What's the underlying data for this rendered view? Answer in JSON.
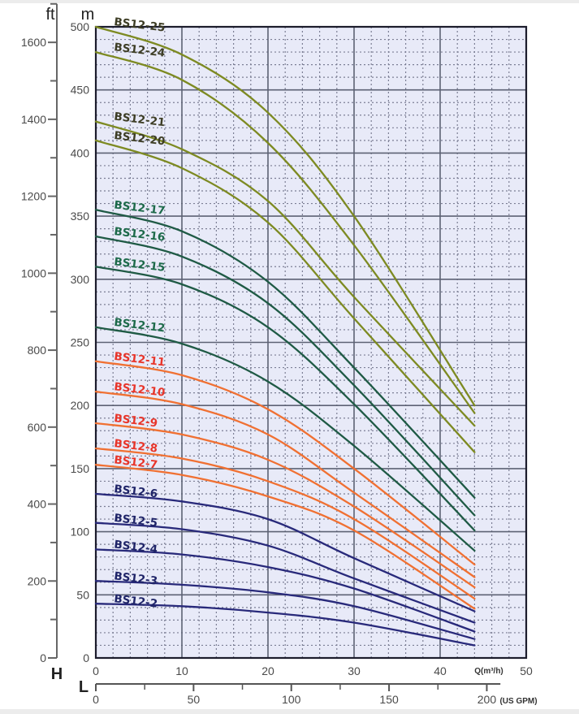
{
  "chart_data": {
    "type": "line",
    "title": "",
    "xlabel": "Q(m³/h)",
    "ylabel": "m",
    "xlim": [
      0,
      50
    ],
    "ylim": [
      0,
      500
    ],
    "x_ticks": [
      "0",
      "10",
      "20",
      "30",
      "40",
      "50"
    ],
    "x_tick_values": [
      0,
      10,
      20,
      30,
      40,
      50
    ],
    "y_ticks": [
      "0",
      "50",
      "100",
      "150",
      "200",
      "250",
      "300",
      "350",
      "400",
      "450",
      "500"
    ],
    "y_tick_values": [
      0,
      50,
      100,
      150,
      200,
      250,
      300,
      350,
      400,
      450,
      500
    ],
    "secondary_y_axis": {
      "unit": "ft",
      "axis_letter": "H",
      "ticks": [
        "0",
        "200",
        "400",
        "600",
        "800",
        "1000",
        "1200",
        "1400",
        "1600"
      ],
      "tick_values": [
        0,
        200,
        400,
        600,
        800,
        1000,
        1200,
        1400,
        1600
      ],
      "minor_step": 100,
      "m_per_unit": 0.3048
    },
    "secondary_x_axis": {
      "unit": "(US GPM)",
      "axis_letter": "L",
      "ticks": [
        "0",
        "50",
        "100",
        "150",
        "200"
      ],
      "tick_values": [
        0,
        50,
        100,
        150,
        200
      ],
      "minor_step": 25,
      "m3h_per_unit": 0.2271
    },
    "grid": true,
    "x": [
      0,
      10,
      20,
      30,
      44
    ],
    "series": [
      {
        "name": "BS12-25",
        "group": "olive",
        "values": [
          500,
          478,
          432,
          350,
          200
        ]
      },
      {
        "name": "BS12-24",
        "group": "olive",
        "values": [
          480,
          458,
          408,
          327,
          194
        ]
      },
      {
        "name": "BS12-21",
        "group": "olive",
        "values": [
          425,
          403,
          362,
          286,
          184
        ]
      },
      {
        "name": "BS12-20",
        "group": "olive",
        "values": [
          410,
          388,
          345,
          269,
          163
        ]
      },
      {
        "name": "BS12-17",
        "group": "green",
        "values": [
          355,
          338,
          298,
          230,
          127
        ]
      },
      {
        "name": "BS12-16",
        "group": "green",
        "values": [
          334,
          318,
          281,
          216,
          113
        ]
      },
      {
        "name": "BS12-15",
        "group": "green",
        "values": [
          310,
          296,
          262,
          201,
          101
        ]
      },
      {
        "name": "BS12-12",
        "group": "green",
        "values": [
          262,
          249,
          219,
          168,
          85
        ]
      },
      {
        "name": "BS12-11",
        "group": "orange",
        "values": [
          235,
          224,
          197,
          150,
          74
        ]
      },
      {
        "name": "BS12-10",
        "group": "orange",
        "values": [
          211,
          201,
          177,
          131,
          64
        ]
      },
      {
        "name": "BS12-9",
        "group": "orange",
        "values": [
          186,
          177,
          157,
          120,
          56
        ]
      },
      {
        "name": "BS12-8",
        "group": "orange",
        "values": [
          166,
          158,
          140,
          110,
          47
        ]
      },
      {
        "name": "BS12-7",
        "group": "orange",
        "values": [
          153,
          145,
          128,
          101,
          39
        ]
      },
      {
        "name": "BS12-6",
        "group": "blue",
        "values": [
          130,
          124,
          110,
          79,
          37
        ]
      },
      {
        "name": "BS12-5",
        "group": "blue",
        "values": [
          107,
          102,
          89,
          63,
          28
        ]
      },
      {
        "name": "BS12-4",
        "group": "blue",
        "values": [
          86,
          82,
          72,
          55,
          21
        ]
      },
      {
        "name": "BS12-3",
        "group": "blue",
        "values": [
          61,
          58,
          52,
          41,
          15
        ]
      },
      {
        "name": "BS12-2",
        "group": "blue",
        "values": [
          43,
          41,
          36,
          28,
          10
        ]
      }
    ],
    "group_colors": {
      "olive": {
        "line": "#7d8a22",
        "label": "#3d3d25"
      },
      "green": {
        "line": "#1f5a45",
        "label": "#1d6a4a"
      },
      "orange": {
        "line": "#f07032",
        "label": "#e8352a"
      },
      "blue": {
        "line": "#28297a",
        "label": "#1f2468"
      }
    },
    "plot_background": "#e8eaf8"
  }
}
